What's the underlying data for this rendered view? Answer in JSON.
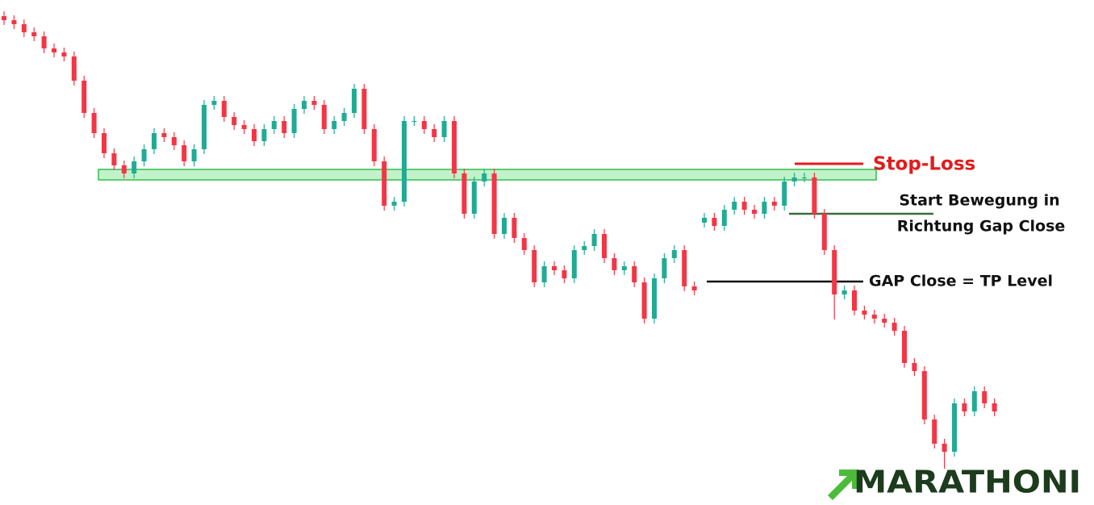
{
  "chart_data": {
    "type": "candlestick",
    "up_color": "#22ab94",
    "down_color": "#f23645",
    "ylim": [
      0,
      626
    ],
    "open": [
      606,
      601,
      596,
      586,
      581,
      566,
      561,
      556,
      526,
      486,
      461,
      436,
      421,
      411,
      426,
      441,
      461,
      456,
      446,
      426,
      441,
      496,
      501,
      481,
      471,
      466,
      451,
      466,
      476,
      461,
      491,
      501,
      496,
      466,
      476,
      486,
      516,
      466,
      426,
      371,
      376,
      476,
      476,
      466,
      456,
      476,
      411,
      361,
      401,
      411,
      336,
      356,
      331,
      316,
      276,
      296,
      291,
      281,
      316,
      321,
      336,
      306,
      291,
      296,
      276,
      231,
      281,
      306,
      316,
      271,
      350,
      356,
      346,
      366,
      376,
      366,
      361,
      376,
      371,
      401,
      406,
      406,
      361,
      316,
      261,
      266,
      241,
      236,
      231,
      226,
      216,
      176,
      166,
      106,
      76,
      66,
      126,
      116,
      141,
      126
    ],
    "high": [
      612,
      607,
      602,
      592,
      587,
      572,
      567,
      562,
      532,
      492,
      467,
      442,
      427,
      432,
      447,
      467,
      467,
      462,
      452,
      447,
      502,
      507,
      507,
      487,
      477,
      472,
      472,
      482,
      482,
      497,
      507,
      507,
      502,
      482,
      492,
      522,
      522,
      472,
      432,
      382,
      482,
      482,
      482,
      472,
      482,
      482,
      417,
      407,
      417,
      417,
      362,
      362,
      337,
      322,
      302,
      302,
      297,
      322,
      327,
      342,
      342,
      312,
      302,
      302,
      282,
      287,
      312,
      322,
      322,
      277,
      362,
      362,
      372,
      382,
      382,
      372,
      382,
      382,
      407,
      412,
      412,
      412,
      367,
      322,
      272,
      272,
      247,
      242,
      237,
      232,
      222,
      182,
      172,
      112,
      82,
      132,
      132,
      147,
      147,
      132
    ],
    "low": [
      595,
      590,
      580,
      575,
      560,
      555,
      550,
      520,
      480,
      455,
      430,
      415,
      405,
      405,
      420,
      435,
      450,
      440,
      420,
      420,
      435,
      490,
      475,
      465,
      460,
      445,
      445,
      460,
      455,
      455,
      485,
      490,
      460,
      460,
      470,
      480,
      460,
      420,
      365,
      365,
      370,
      470,
      460,
      450,
      450,
      405,
      355,
      355,
      395,
      330,
      330,
      325,
      310,
      270,
      270,
      285,
      275,
      275,
      310,
      315,
      300,
      285,
      285,
      270,
      225,
      225,
      275,
      300,
      265,
      260,
      344,
      340,
      340,
      360,
      360,
      355,
      355,
      365,
      365,
      395,
      400,
      355,
      310,
      230,
      255,
      235,
      230,
      225,
      220,
      210,
      170,
      160,
      100,
      70,
      45,
      60,
      110,
      110,
      120,
      110
    ],
    "close": [
      601,
      596,
      586,
      581,
      566,
      561,
      556,
      526,
      486,
      461,
      436,
      421,
      411,
      426,
      441,
      461,
      456,
      446,
      426,
      441,
      496,
      501,
      481,
      471,
      466,
      451,
      466,
      476,
      461,
      491,
      501,
      496,
      466,
      476,
      486,
      516,
      466,
      426,
      371,
      376,
      476,
      476,
      466,
      456,
      476,
      411,
      361,
      401,
      411,
      336,
      356,
      331,
      316,
      276,
      296,
      291,
      281,
      316,
      321,
      336,
      306,
      291,
      296,
      276,
      231,
      281,
      306,
      316,
      271,
      266,
      356,
      346,
      366,
      376,
      366,
      361,
      376,
      371,
      401,
      406,
      406,
      361,
      316,
      261,
      266,
      241,
      236,
      231,
      226,
      216,
      176,
      166,
      106,
      76,
      66,
      126,
      116,
      141,
      126,
      116
    ],
    "annotations": [
      "Stop-Loss",
      "Start Bewegung in",
      "Richtung Gap Close",
      "GAP Close = TP Level"
    ],
    "logo": "MARATHONI"
  }
}
